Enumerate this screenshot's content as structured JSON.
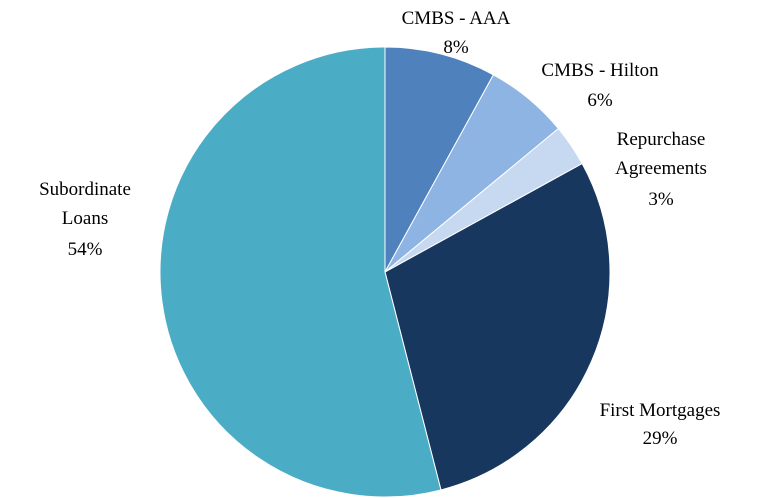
{
  "chart_data": {
    "type": "pie",
    "categories": [
      "CMBS - AAA",
      "CMBS - Hilton",
      "Repurchase Agreements",
      "First Mortgages",
      "Subordinate Loans"
    ],
    "values": [
      8,
      6,
      3,
      29,
      54
    ],
    "value_labels": [
      "8%",
      "6%",
      "3%",
      "29%",
      "54%"
    ],
    "colors": [
      "#4f81bd",
      "#8eb4e3",
      "#c6d9f1",
      "#17375e",
      "#4bacc6"
    ]
  }
}
